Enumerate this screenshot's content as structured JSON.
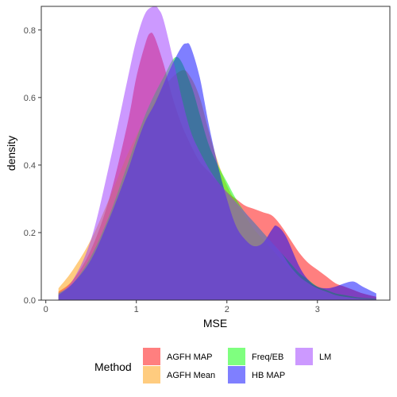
{
  "chart_data": {
    "type": "area",
    "subtype": "density",
    "xlabel": "MSE",
    "ylabel": "density",
    "xlim": [
      -0.05,
      3.8
    ],
    "ylim": [
      0,
      0.87
    ],
    "x_ticks": [
      0,
      1,
      2,
      3
    ],
    "y_ticks": [
      0.0,
      0.2,
      0.4,
      0.6,
      0.8
    ],
    "x_tick_labels": [
      "0",
      "1",
      "2",
      "3"
    ],
    "y_tick_labels": [
      "0.0",
      "0.2",
      "0.4",
      "0.6",
      "0.8"
    ],
    "grid": false,
    "fill_opacity": 0.5,
    "legend": {
      "title": "Method",
      "position": "bottom",
      "entries": [
        "AGFH MAP",
        "AGFH Mean",
        "Freq/EB",
        "HB MAP",
        "LM"
      ]
    },
    "series": [
      {
        "name": "AGFH MAP",
        "color": "#FF0000",
        "x": [
          0.14,
          0.3,
          0.5,
          0.7,
          0.9,
          1.0,
          1.1,
          1.15,
          1.2,
          1.3,
          1.4,
          1.5,
          1.6,
          1.7,
          1.8,
          1.9,
          2.0,
          2.1,
          2.2,
          2.3,
          2.4,
          2.5,
          2.6,
          2.7,
          2.8,
          2.9,
          3.0,
          3.1,
          3.2,
          3.3,
          3.4,
          3.5,
          3.65
        ],
        "y": [
          0.025,
          0.06,
          0.15,
          0.3,
          0.52,
          0.66,
          0.76,
          0.79,
          0.78,
          0.7,
          0.6,
          0.52,
          0.46,
          0.41,
          0.38,
          0.35,
          0.32,
          0.3,
          0.28,
          0.27,
          0.26,
          0.25,
          0.22,
          0.18,
          0.14,
          0.11,
          0.09,
          0.07,
          0.05,
          0.04,
          0.03,
          0.02,
          0.01
        ]
      },
      {
        "name": "AGFH Mean",
        "color": "#FF9900",
        "x": [
          0.14,
          0.3,
          0.5,
          0.7,
          0.9,
          1.1,
          1.3,
          1.5,
          1.6,
          1.7,
          1.8,
          1.9,
          2.0,
          2.1,
          2.2,
          2.3,
          2.4,
          2.5,
          2.6,
          2.7,
          2.8,
          2.9,
          3.0,
          3.1,
          3.2,
          3.3,
          3.45,
          3.65
        ],
        "y": [
          0.035,
          0.09,
          0.18,
          0.3,
          0.43,
          0.54,
          0.63,
          0.68,
          0.66,
          0.6,
          0.5,
          0.41,
          0.34,
          0.29,
          0.25,
          0.21,
          0.18,
          0.15,
          0.12,
          0.09,
          0.07,
          0.05,
          0.04,
          0.03,
          0.02,
          0.015,
          0.008,
          0.004
        ]
      },
      {
        "name": "Freq/EB",
        "color": "#00FF00",
        "x": [
          0.14,
          0.3,
          0.5,
          0.7,
          0.9,
          1.1,
          1.3,
          1.45,
          1.6,
          1.7,
          1.8,
          1.9,
          2.0,
          2.1,
          2.2,
          2.3,
          2.4,
          2.5,
          2.6,
          2.7,
          2.8,
          2.9,
          3.0,
          3.1,
          3.2,
          3.3,
          3.45,
          3.65
        ],
        "y": [
          0.02,
          0.05,
          0.13,
          0.25,
          0.4,
          0.55,
          0.66,
          0.72,
          0.64,
          0.55,
          0.46,
          0.4,
          0.35,
          0.3,
          0.26,
          0.23,
          0.2,
          0.17,
          0.14,
          0.11,
          0.08,
          0.06,
          0.04,
          0.03,
          0.02,
          0.015,
          0.008,
          0.004
        ]
      },
      {
        "name": "HB MAP",
        "color": "#0000FF",
        "x": [
          0.14,
          0.3,
          0.5,
          0.7,
          0.9,
          1.0,
          1.1,
          1.2,
          1.3,
          1.4,
          1.5,
          1.55,
          1.6,
          1.7,
          1.8,
          1.9,
          2.0,
          2.1,
          2.2,
          2.3,
          2.4,
          2.5,
          2.55,
          2.65,
          2.8,
          2.9,
          3.0,
          3.1,
          3.2,
          3.3,
          3.4,
          3.5,
          3.65
        ],
        "y": [
          0.015,
          0.05,
          0.12,
          0.24,
          0.38,
          0.46,
          0.53,
          0.58,
          0.64,
          0.7,
          0.75,
          0.76,
          0.75,
          0.66,
          0.52,
          0.4,
          0.3,
          0.22,
          0.18,
          0.16,
          0.17,
          0.21,
          0.22,
          0.19,
          0.1,
          0.06,
          0.04,
          0.035,
          0.04,
          0.05,
          0.055,
          0.04,
          0.02
        ]
      },
      {
        "name": "LM",
        "color": "#9933FF",
        "x": [
          0.14,
          0.3,
          0.5,
          0.7,
          0.9,
          1.0,
          1.1,
          1.2,
          1.25,
          1.3,
          1.4,
          1.5,
          1.6,
          1.7,
          1.8,
          1.9,
          2.0,
          2.1,
          2.2,
          2.3,
          2.4,
          2.5,
          2.6,
          2.7,
          2.8,
          2.9,
          3.0,
          3.1,
          3.2,
          3.3,
          3.45,
          3.65
        ],
        "y": [
          0.02,
          0.06,
          0.18,
          0.4,
          0.65,
          0.77,
          0.85,
          0.87,
          0.86,
          0.83,
          0.72,
          0.6,
          0.5,
          0.44,
          0.39,
          0.35,
          0.32,
          0.29,
          0.26,
          0.23,
          0.2,
          0.17,
          0.14,
          0.1,
          0.07,
          0.05,
          0.035,
          0.025,
          0.015,
          0.01,
          0.005,
          0.002
        ]
      }
    ]
  }
}
